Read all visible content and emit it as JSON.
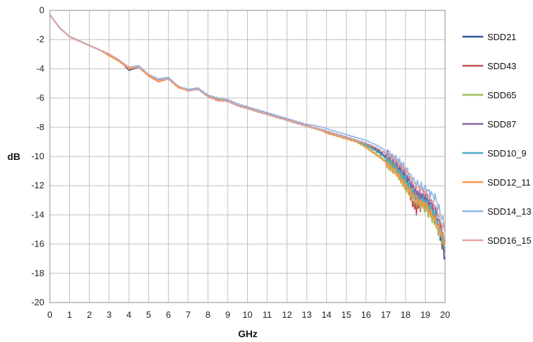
{
  "chart_data": {
    "type": "line",
    "xlabel": "GHz",
    "ylabel": "dB",
    "xlim": [
      0,
      20
    ],
    "ylim": [
      -20,
      0
    ],
    "xticks": [
      "0",
      "1",
      "2",
      "3",
      "4",
      "5",
      "6",
      "7",
      "8",
      "9",
      "10",
      "11",
      "12",
      "13",
      "14",
      "15",
      "16",
      "17",
      "18",
      "19",
      "20"
    ],
    "yticks": [
      "0",
      "-2",
      "-4",
      "-6",
      "-8",
      "-10",
      "-12",
      "-14",
      "-16",
      "-18",
      "-20"
    ],
    "grid": true,
    "legend_position": "right",
    "x": [
      0,
      0.5,
      1,
      1.5,
      2,
      2.5,
      3,
      3.5,
      4,
      4.5,
      5,
      5.5,
      6,
      6.5,
      7,
      7.5,
      8,
      8.5,
      9,
      9.5,
      10,
      10.5,
      11,
      11.5,
      12,
      12.5,
      13,
      13.5,
      14,
      14.5,
      15,
      15.5,
      16,
      16.5,
      17,
      17.5,
      18,
      18.5,
      19,
      19.5,
      20
    ],
    "series": [
      {
        "name": "SDD21",
        "color": "#2f5597",
        "values": [
          -0.3,
          -1.2,
          -1.8,
          -2.1,
          -2.4,
          -2.7,
          -3.0,
          -3.4,
          -4.1,
          -3.9,
          -4.4,
          -4.8,
          -4.7,
          -5.2,
          -5.5,
          -5.4,
          -5.9,
          -6.1,
          -6.2,
          -6.5,
          -6.7,
          -6.9,
          -7.1,
          -7.3,
          -7.5,
          -7.7,
          -7.9,
          -8.1,
          -8.3,
          -8.5,
          -8.7,
          -8.9,
          -9.2,
          -9.5,
          -10.0,
          -10.6,
          -11.5,
          -12.8,
          -13.2,
          -14.0,
          -16.9
        ]
      },
      {
        "name": "SDD43",
        "color": "#c0504d",
        "values": [
          -0.3,
          -1.2,
          -1.8,
          -2.1,
          -2.4,
          -2.7,
          -3.0,
          -3.4,
          -4.0,
          -3.9,
          -4.4,
          -4.8,
          -4.7,
          -5.2,
          -5.5,
          -5.4,
          -5.9,
          -6.1,
          -6.2,
          -6.5,
          -6.7,
          -6.9,
          -7.1,
          -7.3,
          -7.5,
          -7.7,
          -7.9,
          -8.1,
          -8.3,
          -8.5,
          -8.7,
          -8.9,
          -9.2,
          -9.6,
          -10.1,
          -10.8,
          -11.8,
          -13.6,
          -13.0,
          -14.2,
          -16.5
        ]
      },
      {
        "name": "SDD65",
        "color": "#9bbb59",
        "values": [
          -0.3,
          -1.2,
          -1.8,
          -2.1,
          -2.4,
          -2.7,
          -3.1,
          -3.4,
          -3.9,
          -3.9,
          -4.5,
          -4.8,
          -4.7,
          -5.2,
          -5.5,
          -5.4,
          -5.9,
          -6.1,
          -6.2,
          -6.5,
          -6.7,
          -6.9,
          -7.1,
          -7.3,
          -7.5,
          -7.7,
          -7.9,
          -8.1,
          -8.3,
          -8.5,
          -8.7,
          -8.9,
          -9.3,
          -9.8,
          -10.3,
          -11.0,
          -11.9,
          -13.0,
          -13.4,
          -14.5,
          -16.0
        ]
      },
      {
        "name": "SDD87",
        "color": "#8064a2",
        "values": [
          -0.3,
          -1.2,
          -1.8,
          -2.1,
          -2.4,
          -2.7,
          -3.0,
          -3.4,
          -3.9,
          -3.8,
          -4.4,
          -4.7,
          -4.6,
          -5.2,
          -5.5,
          -5.4,
          -5.9,
          -6.1,
          -6.2,
          -6.5,
          -6.7,
          -6.9,
          -7.1,
          -7.3,
          -7.5,
          -7.7,
          -7.9,
          -8.1,
          -8.3,
          -8.5,
          -8.7,
          -8.9,
          -9.1,
          -9.4,
          -9.8,
          -10.4,
          -11.2,
          -12.4,
          -12.8,
          -13.5,
          -15.8
        ]
      },
      {
        "name": "SDD10_9",
        "color": "#4bacc6",
        "values": [
          -0.3,
          -1.2,
          -1.8,
          -2.1,
          -2.4,
          -2.7,
          -3.0,
          -3.4,
          -3.9,
          -3.8,
          -4.4,
          -4.7,
          -4.6,
          -5.2,
          -5.5,
          -5.4,
          -5.9,
          -6.1,
          -6.2,
          -6.5,
          -6.7,
          -6.9,
          -7.1,
          -7.3,
          -7.5,
          -7.7,
          -7.9,
          -8.1,
          -8.3,
          -8.5,
          -8.7,
          -8.9,
          -9.2,
          -9.6,
          -10.1,
          -10.8,
          -11.6,
          -12.9,
          -13.1,
          -14.0,
          -16.2
        ]
      },
      {
        "name": "SDD12_11",
        "color": "#f79646",
        "values": [
          -0.3,
          -1.2,
          -1.8,
          -2.1,
          -2.4,
          -2.7,
          -3.1,
          -3.5,
          -4.0,
          -3.9,
          -4.5,
          -4.9,
          -4.7,
          -5.3,
          -5.5,
          -5.4,
          -5.9,
          -6.1,
          -6.2,
          -6.5,
          -6.7,
          -6.9,
          -7.1,
          -7.3,
          -7.5,
          -7.7,
          -7.9,
          -8.1,
          -8.4,
          -8.6,
          -8.8,
          -9.0,
          -9.4,
          -9.9,
          -10.4,
          -11.1,
          -12.0,
          -13.0,
          -13.3,
          -14.4,
          -15.8
        ]
      },
      {
        "name": "SDD14_13",
        "color": "#8eb4e3",
        "values": [
          -0.3,
          -1.2,
          -1.8,
          -2.1,
          -2.4,
          -2.7,
          -3.0,
          -3.4,
          -3.9,
          -3.8,
          -4.4,
          -4.7,
          -4.6,
          -5.2,
          -5.4,
          -5.3,
          -5.8,
          -6.0,
          -6.1,
          -6.4,
          -6.6,
          -6.8,
          -7.0,
          -7.2,
          -7.4,
          -7.6,
          -7.8,
          -7.9,
          -8.1,
          -8.3,
          -8.5,
          -8.7,
          -8.9,
          -9.2,
          -9.6,
          -10.1,
          -10.8,
          -11.8,
          -12.2,
          -12.8,
          -14.8
        ]
      },
      {
        "name": "SDD16_15",
        "color": "#e6a0a0",
        "values": [
          -0.3,
          -1.2,
          -1.8,
          -2.1,
          -2.4,
          -2.7,
          -3.0,
          -3.4,
          -3.9,
          -3.9,
          -4.4,
          -4.8,
          -4.7,
          -5.2,
          -5.5,
          -5.4,
          -5.9,
          -6.2,
          -6.2,
          -6.5,
          -6.7,
          -6.9,
          -7.1,
          -7.3,
          -7.5,
          -7.7,
          -7.9,
          -8.1,
          -8.3,
          -8.5,
          -8.7,
          -8.9,
          -9.1,
          -9.4,
          -9.8,
          -10.3,
          -11.0,
          -12.0,
          -12.5,
          -13.4,
          -15.2
        ]
      }
    ]
  }
}
